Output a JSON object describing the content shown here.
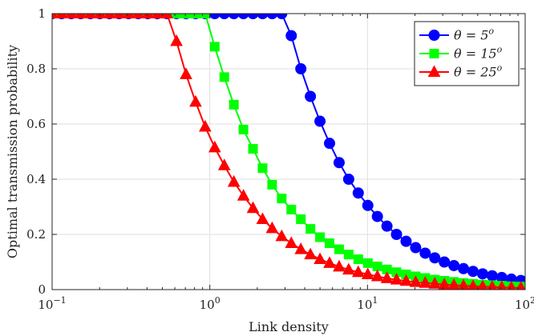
{
  "chart_data": {
    "type": "line",
    "xscale": "log",
    "xlim": [
      0.1,
      100
    ],
    "ylim": [
      0,
      1
    ],
    "grid": true,
    "xlabel": "Link density",
    "ylabel": "Optimal transmission probability",
    "x_tick_labels": [
      {
        "base": "10",
        "exp": "−1",
        "value": 0.1
      },
      {
        "base": "10",
        "exp": "0",
        "value": 1
      },
      {
        "base": "10",
        "exp": "1",
        "value": 10
      },
      {
        "base": "10",
        "exp": "2",
        "value": 100
      }
    ],
    "y_tick_labels": [
      {
        "label": "0",
        "value": 0
      },
      {
        "label": "0.2",
        "value": 0.2
      },
      {
        "label": "0.4",
        "value": 0.4
      },
      {
        "label": "0.6",
        "value": 0.6
      },
      {
        "label": "0.8",
        "value": 0.8
      },
      {
        "label": "1",
        "value": 1
      }
    ],
    "legend_placement": "top-right",
    "x": [
      0.1,
      0.1149,
      0.1322,
      0.152,
      0.1748,
      0.201,
      0.2311,
      0.2658,
      0.3056,
      0.3514,
      0.4041,
      0.4648,
      0.5344,
      0.6146,
      0.7067,
      0.8127,
      0.9345,
      1.0746,
      1.2357,
      1.421,
      1.6341,
      1.8791,
      2.1609,
      2.4849,
      2.8575,
      3.2859,
      3.7786,
      4.3451,
      4.9966,
      5.7458,
      6.6073,
      7.5979,
      8.7371,
      10.047,
      11.554,
      13.286,
      15.278,
      17.568,
      20.203,
      23.232,
      26.715,
      30.72,
      35.326,
      40.623,
      46.714,
      53.718,
      61.772,
      71.034,
      81.684,
      93.932
    ],
    "series": [
      {
        "name": "θ = 5",
        "name_sup": "o",
        "color": "#0000ff",
        "marker": "circle",
        "values": [
          1,
          1,
          1,
          1,
          1,
          1,
          1,
          1,
          1,
          1,
          1,
          1,
          1,
          1,
          1,
          1,
          1,
          1,
          1,
          1,
          1,
          1,
          1,
          1,
          1,
          0.92,
          0.8,
          0.7,
          0.61,
          0.53,
          0.46,
          0.4,
          0.35,
          0.305,
          0.265,
          0.23,
          0.2,
          0.175,
          0.152,
          0.132,
          0.115,
          0.1,
          0.087,
          0.076,
          0.066,
          0.057,
          0.05,
          0.044,
          0.038,
          0.033
        ]
      },
      {
        "name": "θ = 15",
        "name_sup": "o",
        "color": "#00ff00",
        "marker": "square",
        "values": [
          1,
          1,
          1,
          1,
          1,
          1,
          1,
          1,
          1,
          1,
          1,
          1,
          1,
          1,
          1,
          1,
          1,
          0.88,
          0.77,
          0.67,
          0.58,
          0.51,
          0.44,
          0.38,
          0.33,
          0.29,
          0.255,
          0.22,
          0.19,
          0.168,
          0.146,
          0.127,
          0.11,
          0.096,
          0.084,
          0.073,
          0.063,
          0.055,
          0.048,
          0.042,
          0.036,
          0.032,
          0.028,
          0.024,
          0.021,
          0.018,
          0.016,
          0.014,
          0.012,
          0.011
        ]
      },
      {
        "name": "θ = 25",
        "name_sup": "o",
        "color": "#ff0000",
        "marker": "triangle",
        "values": [
          1,
          1,
          1,
          1,
          1,
          1,
          1,
          1,
          1,
          1,
          1,
          1,
          1,
          0.9,
          0.78,
          0.68,
          0.59,
          0.515,
          0.45,
          0.39,
          0.34,
          0.295,
          0.255,
          0.222,
          0.193,
          0.168,
          0.146,
          0.127,
          0.11,
          0.096,
          0.083,
          0.072,
          0.063,
          0.055,
          0.048,
          0.041,
          0.036,
          0.031,
          0.027,
          0.024,
          0.021,
          0.018,
          0.016,
          0.014,
          0.012,
          0.011,
          0.0095,
          0.0083,
          0.0072,
          0.0063
        ]
      }
    ]
  }
}
